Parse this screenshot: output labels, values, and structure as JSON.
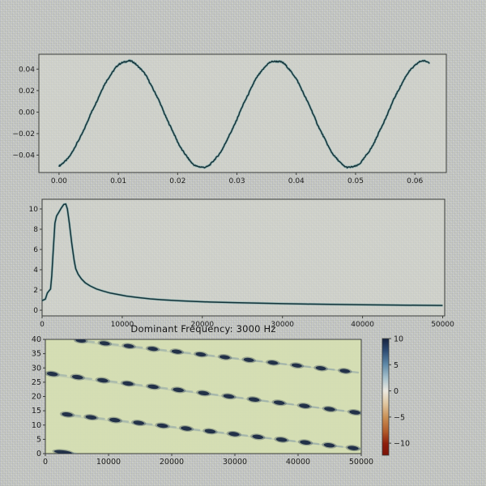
{
  "window": {
    "background": "#c6c8c3"
  },
  "palette": {
    "line_color": "#16343a",
    "line_halo": "rgba(70,150,155,0.40)",
    "axis_color": "#3a3d3a",
    "text_color": "#1b1b1b",
    "plot_bg": "rgba(216,218,209,0.55)",
    "heatmap_bg": "#d6dfb2",
    "blob_color": "#1c2b45",
    "streak_color": "rgba(125,148,165,0.45)"
  },
  "chart_data": [
    {
      "type": "line",
      "name": "waveform",
      "title": "",
      "xlabel": "",
      "ylabel": "",
      "x_ticks": [
        "0.00",
        "0.01",
        "0.02",
        "0.03",
        "0.04",
        "0.05",
        "0.06"
      ],
      "x_tick_values": [
        0,
        0.01,
        0.02,
        0.03,
        0.04,
        0.05,
        0.06
      ],
      "y_ticks": [
        "0.04",
        "0.02",
        "0.00",
        "−0.02",
        "−0.04"
      ],
      "y_tick_values": [
        0.04,
        0.02,
        0,
        -0.02,
        -0.04
      ],
      "xlim": [
        -0.0034,
        0.0653
      ],
      "ylim": [
        -0.0562,
        0.0538
      ],
      "signal": {
        "description": "noisy sinusoid time-domain signal",
        "amplitude": 0.0495,
        "dc_offset": -0.002,
        "period_s": 0.025,
        "phase_s": 0.00535,
        "duration_s": 0.0625,
        "noise_amplitude": 0.0012,
        "peak_value": 0.0475,
        "trough_value": -0.0515
      }
    },
    {
      "type": "line",
      "name": "spectrum",
      "title": "",
      "x_ticks": [
        "0",
        "10000",
        "20000",
        "30000",
        "40000",
        "50000"
      ],
      "x_tick_values": [
        0,
        10000,
        20000,
        30000,
        40000,
        50000
      ],
      "y_ticks": [
        "0",
        "2",
        "4",
        "6",
        "8",
        "10"
      ],
      "y_tick_values": [
        0,
        2,
        4,
        6,
        8,
        10
      ],
      "xlim": [
        0,
        50250
      ],
      "ylim": [
        -0.56,
        10.96
      ],
      "peak": {
        "x": 3000,
        "y": 10.5
      },
      "points": [
        [
          0,
          0.95
        ],
        [
          400,
          1.1
        ],
        [
          650,
          1.7
        ],
        [
          900,
          1.95
        ],
        [
          1050,
          2.1
        ],
        [
          1200,
          3.4
        ],
        [
          1400,
          6.0
        ],
        [
          1600,
          8.6
        ],
        [
          1800,
          9.3
        ],
        [
          2100,
          9.7
        ],
        [
          2400,
          10.1
        ],
        [
          2700,
          10.45
        ],
        [
          2950,
          10.5
        ],
        [
          3150,
          10.0
        ],
        [
          3400,
          8.6
        ],
        [
          3700,
          6.6
        ],
        [
          4000,
          4.9
        ],
        [
          4200,
          4.1
        ],
        [
          4500,
          3.55
        ],
        [
          4900,
          3.1
        ],
        [
          5400,
          2.7
        ],
        [
          6000,
          2.4
        ],
        [
          6800,
          2.1
        ],
        [
          7600,
          1.9
        ],
        [
          8500,
          1.7
        ],
        [
          9500,
          1.55
        ],
        [
          10500,
          1.4
        ],
        [
          12000,
          1.25
        ],
        [
          13500,
          1.12
        ],
        [
          15000,
          1.03
        ],
        [
          17000,
          0.94
        ],
        [
          19000,
          0.87
        ],
        [
          21000,
          0.81
        ],
        [
          24000,
          0.75
        ],
        [
          27000,
          0.7
        ],
        [
          30000,
          0.65
        ],
        [
          33000,
          0.61
        ],
        [
          36000,
          0.58
        ],
        [
          40000,
          0.54
        ],
        [
          44000,
          0.51
        ],
        [
          47000,
          0.49
        ],
        [
          50000,
          0.47
        ]
      ]
    },
    {
      "type": "heatmap",
      "name": "spectrogram",
      "title": "Dominant Frequency: 3000 Hz",
      "dominant_frequency_hz": 3000,
      "x_ticks": [
        "0",
        "10000",
        "20000",
        "30000",
        "40000",
        "50000"
      ],
      "x_tick_values": [
        0,
        10000,
        20000,
        30000,
        40000,
        50000
      ],
      "y_ticks": [
        "0",
        "5",
        "10",
        "15",
        "20",
        "25",
        "30",
        "35",
        "40"
      ],
      "y_tick_values": [
        0,
        5,
        10,
        15,
        20,
        25,
        30,
        35,
        40
      ],
      "xlim": [
        0,
        50000
      ],
      "ylim": [
        0,
        40
      ],
      "dot_rows": [
        {
          "x_start": 5600,
          "y_start": 39.6,
          "x_step": 3800,
          "y_step": -0.97,
          "count": 12,
          "rx": 6.4,
          "ry": 2.5
        },
        {
          "x_start": 1100,
          "y_start": 27.9,
          "x_step": 3990,
          "y_step": -1.12,
          "count": 13,
          "rx": 6.8,
          "ry": 2.6
        },
        {
          "x_start": 3460,
          "y_start": 13.7,
          "x_step": 3770,
          "y_step": -0.98,
          "count": 13,
          "rx": 6.8,
          "ry": 2.6
        },
        {
          "x_start": 2800,
          "y_start": 0.5,
          "x_step": 3770,
          "y_step": -0.9,
          "count": 1,
          "rx": 11,
          "ry": 2.3
        }
      ],
      "colorbar": {
        "vmin": -12.3,
        "vmax": 10,
        "ticks": [
          "10",
          "5",
          "0",
          "−5",
          "−10"
        ],
        "tick_values": [
          10,
          5,
          0,
          -5,
          -10
        ],
        "gradient_stops": [
          {
            "pos": 0.0,
            "color": "#16233f"
          },
          {
            "pos": 0.1,
            "color": "#2c4a72"
          },
          {
            "pos": 0.22,
            "color": "#5e89a8"
          },
          {
            "pos": 0.34,
            "color": "#a9c3cd"
          },
          {
            "pos": 0.448,
            "color": "#ece9e0"
          },
          {
            "pos": 0.56,
            "color": "#e0c6a0"
          },
          {
            "pos": 0.68,
            "color": "#c98e52"
          },
          {
            "pos": 0.8,
            "color": "#b05a28"
          },
          {
            "pos": 0.9,
            "color": "#8e1f0c"
          },
          {
            "pos": 1.0,
            "color": "#7c1206"
          }
        ]
      }
    }
  ]
}
